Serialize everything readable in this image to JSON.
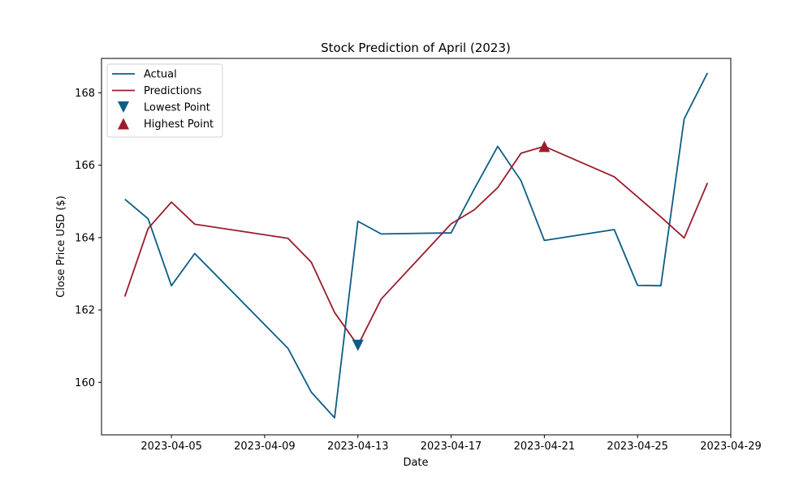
{
  "chart_data": {
    "type": "line",
    "title": "Stock Prediction of April (2023)",
    "xlabel": "Date",
    "ylabel": "Close Price USD ($)",
    "xlim": [
      "2023-04-02",
      "2023-04-29"
    ],
    "ylim": [
      158.55,
      189.0
    ],
    "grid": false,
    "legend_position": "top-left",
    "x_ticks": [
      "2023-04-05",
      "2023-04-09",
      "2023-04-13",
      "2023-04-17",
      "2023-04-21",
      "2023-04-25",
      "2023-04-29"
    ],
    "y_ticks": [
      160,
      162,
      164,
      166,
      168
    ],
    "series": [
      {
        "name": "Actual",
        "color": "#0b5d87",
        "points": [
          [
            "2023-04-03",
            165.06
          ],
          [
            "2023-04-04",
            164.52
          ],
          [
            "2023-04-05",
            162.67
          ],
          [
            "2023-04-06",
            163.56
          ],
          [
            "2023-04-10",
            160.94
          ],
          [
            "2023-04-11",
            159.73
          ],
          [
            "2023-04-12",
            159.02
          ],
          [
            "2023-04-13",
            164.45
          ],
          [
            "2023-04-14",
            164.1
          ],
          [
            "2023-04-17",
            164.13
          ],
          [
            "2023-04-18",
            165.35
          ],
          [
            "2023-04-19",
            166.52
          ],
          [
            "2023-04-20",
            165.57
          ],
          [
            "2023-04-21",
            163.92
          ],
          [
            "2023-04-24",
            164.22
          ],
          [
            "2023-04-25",
            162.68
          ],
          [
            "2023-04-26",
            162.67
          ],
          [
            "2023-04-27",
            167.28
          ],
          [
            "2023-04-28",
            168.55
          ]
        ]
      },
      {
        "name": "Predictions",
        "color": "#9b1c2c",
        "points": [
          [
            "2023-04-03",
            162.37
          ],
          [
            "2023-04-04",
            164.25
          ],
          [
            "2023-04-05",
            164.98
          ],
          [
            "2023-04-06",
            164.37
          ],
          [
            "2023-04-10",
            163.98
          ],
          [
            "2023-04-11",
            163.32
          ],
          [
            "2023-04-12",
            161.93
          ],
          [
            "2023-04-13",
            161.02
          ],
          [
            "2023-04-14",
            162.3
          ],
          [
            "2023-04-17",
            164.38
          ],
          [
            "2023-04-18",
            164.77
          ],
          [
            "2023-04-19",
            165.38
          ],
          [
            "2023-04-20",
            166.33
          ],
          [
            "2023-04-21",
            166.52
          ],
          [
            "2023-04-24",
            165.68
          ],
          [
            "2023-04-26",
            164.57
          ],
          [
            "2023-04-27",
            163.99
          ],
          [
            "2023-04-28",
            165.51
          ]
        ]
      }
    ],
    "markers": [
      {
        "name": "Lowest Point",
        "shape": "triangle-down",
        "color": "#0b5d87",
        "point": [
          "2023-04-13",
          161.02
        ]
      },
      {
        "name": "Highest Point",
        "shape": "triangle-up",
        "color": "#9b1c2c",
        "point": [
          "2023-04-21",
          166.52
        ]
      }
    ]
  }
}
